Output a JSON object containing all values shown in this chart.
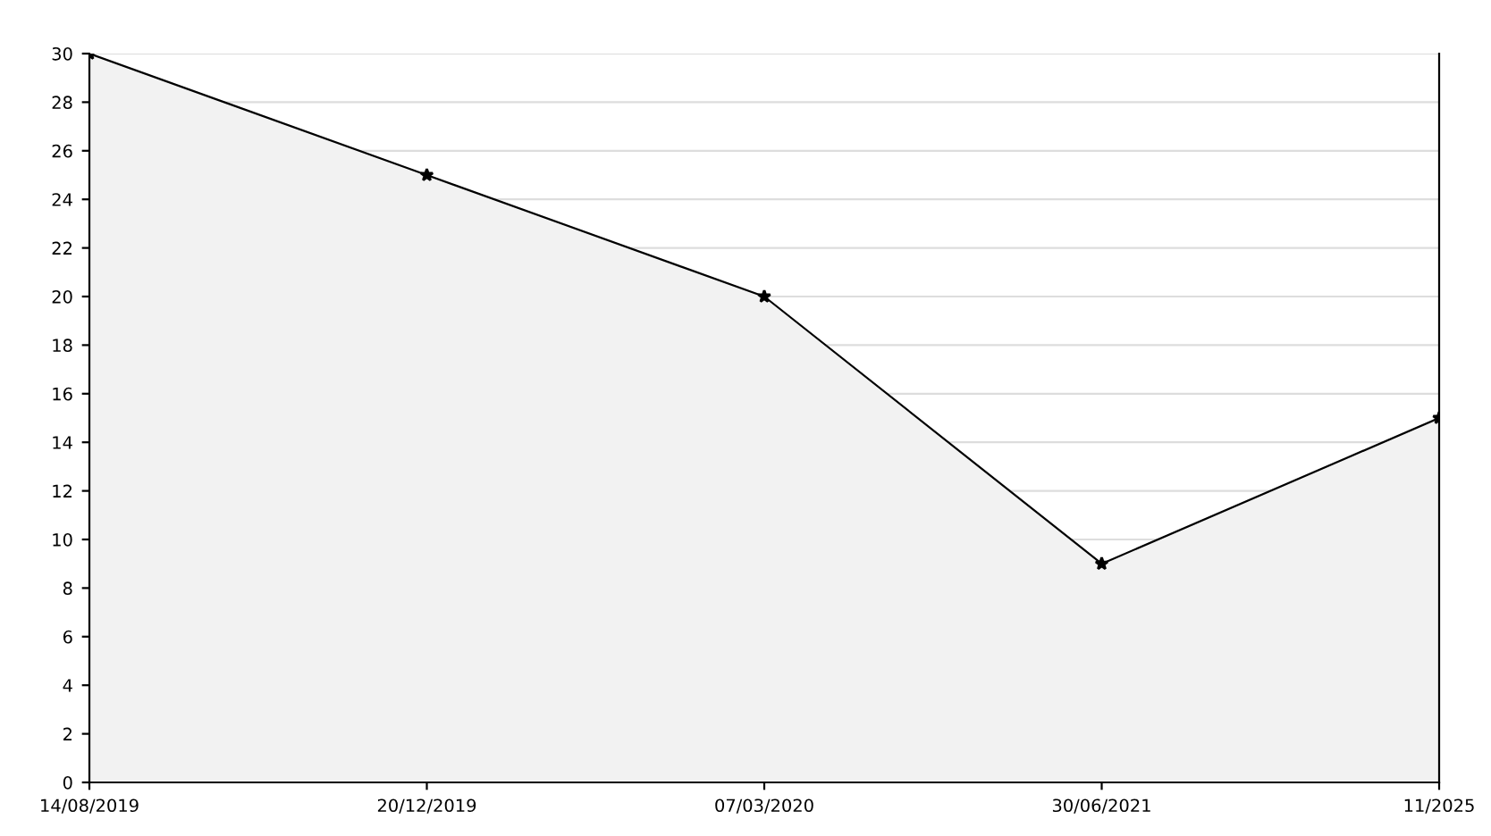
{
  "chart_data": {
    "type": "area",
    "categories": [
      "14/08/2019",
      "20/12/2019",
      "07/03/2020",
      "30/06/2021",
      "11/2025"
    ],
    "series": [
      {
        "color": "#f2f2f2",
        "values": [
          30,
          25,
          20,
          9,
          15
        ]
      }
    ],
    "ylim": [
      0,
      30
    ],
    "yticks": [
      0,
      2,
      4,
      6,
      8,
      10,
      12,
      14,
      16,
      18,
      20,
      22,
      24,
      26,
      28,
      30
    ],
    "grid": "y",
    "marker": "star",
    "line_style": "solid"
  }
}
